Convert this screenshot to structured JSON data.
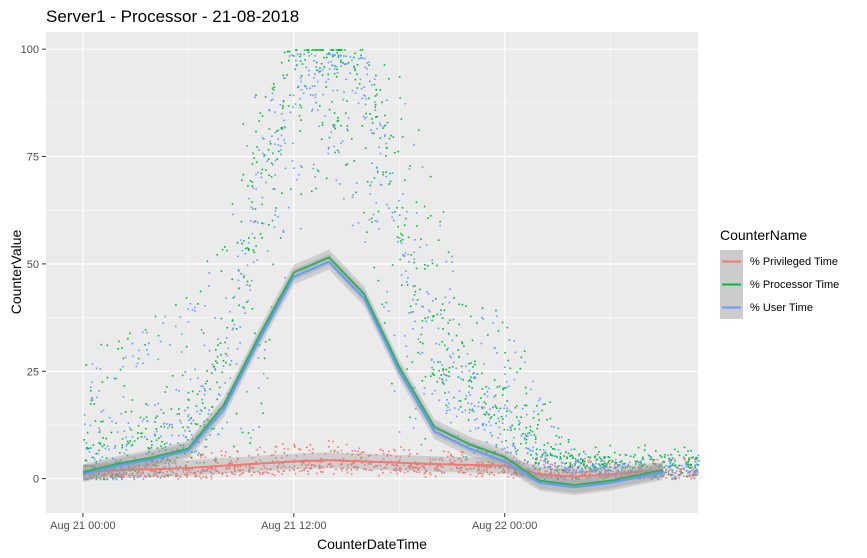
{
  "chart_data": {
    "type": "scatter",
    "title": "Server1 - Processor - 21-08-2018",
    "xlabel": "CounterDateTime",
    "ylabel": "CounterValue",
    "x_ticks": [
      "Aug 21 00:00",
      "Aug 21 12:00",
      "Aug 22 00:00"
    ],
    "x_tick_hours": [
      0,
      12,
      24
    ],
    "xlim_hours": [
      -2.1,
      35.0
    ],
    "ylim": [
      -8,
      104
    ],
    "y_ticks": [
      0,
      25,
      50,
      75,
      100
    ],
    "grid": true,
    "legend": {
      "title": "CounterName",
      "placement": "right"
    },
    "series": [
      {
        "name": "% Privileged Time",
        "color": "#F8766D",
        "x": [
          0,
          2,
          4,
          6,
          8,
          10,
          12,
          14,
          16,
          18,
          20,
          22,
          24,
          26,
          28,
          30,
          33
        ],
        "y": [
          1.0,
          1.2,
          1.4,
          1.6,
          2.0,
          2.5,
          3.2,
          3.5,
          3.2,
          2.8,
          2.5,
          2.3,
          2.2,
          1.2,
          1.5,
          1.4,
          1.5
        ],
        "points_min": [
          0,
          0,
          0,
          0,
          0,
          0.5,
          1,
          1,
          1,
          0.5,
          0.5,
          0.5,
          0.5,
          0,
          0,
          0,
          0
        ],
        "points_max": [
          3,
          4,
          5,
          6,
          7,
          8,
          9,
          9,
          8,
          8,
          7,
          7,
          7,
          5,
          5,
          5,
          5
        ],
        "smooth": [
          1.5,
          2,
          2.2,
          2.5,
          3,
          3.5,
          4,
          4.3,
          4,
          3.7,
          3.4,
          3.2,
          3,
          1,
          0.5,
          1,
          2
        ]
      },
      {
        "name": "% Processor Time",
        "color": "#00BA38",
        "x": [
          0,
          2,
          4,
          6,
          8,
          10,
          12,
          14,
          16,
          18,
          20,
          22,
          24,
          26,
          28,
          30,
          33
        ],
        "y": [
          2.5,
          5.5,
          7.5,
          11,
          25,
          72,
          99,
          99.5,
          98,
          60,
          32,
          22,
          15,
          5,
          4,
          4,
          4
        ],
        "points_min": [
          0,
          0,
          0,
          0,
          0,
          10,
          60,
          70,
          60,
          10,
          5,
          2,
          2,
          0,
          0,
          0,
          0
        ],
        "points_max": [
          30,
          33,
          40,
          45,
          65,
          98,
          100,
          100,
          100,
          95,
          70,
          40,
          40,
          22,
          8,
          8,
          8
        ],
        "smooth": [
          1.5,
          3.5,
          5,
          7,
          17,
          33,
          48,
          51.5,
          43,
          26,
          12,
          8,
          5,
          -0.5,
          -1.5,
          -0.5,
          2
        ]
      },
      {
        "name": "% User Time",
        "color": "#619CFF",
        "x": [
          0,
          2,
          4,
          6,
          8,
          10,
          12,
          14,
          16,
          18,
          20,
          22,
          24,
          26,
          28,
          30,
          33
        ],
        "y": [
          2,
          4.5,
          6,
          9,
          22,
          68,
          95,
          96,
          95,
          56,
          28,
          19,
          13,
          3.5,
          2.5,
          2.5,
          2.5
        ],
        "points_min": [
          0,
          0,
          0,
          0,
          0,
          10,
          55,
          65,
          55,
          10,
          5,
          2,
          2,
          0,
          0,
          0,
          0
        ],
        "points_max": [
          28,
          30,
          38,
          43,
          60,
          96,
          99,
          99,
          98,
          92,
          65,
          38,
          38,
          20,
          6,
          6,
          6
        ],
        "smooth": [
          1,
          3,
          4.5,
          6.5,
          16,
          32,
          47,
          50.5,
          42,
          25,
          11,
          7,
          4,
          -1,
          -2,
          -1,
          1.5
        ]
      }
    ]
  }
}
